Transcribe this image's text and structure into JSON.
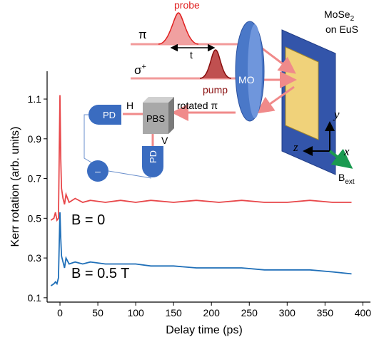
{
  "chart_data": {
    "type": "line",
    "xlabel": "Delay time (ps)",
    "ylabel": "Kerr rotation (arb. units)",
    "x": [
      -12,
      -8,
      -6,
      -4,
      -2,
      0,
      1,
      2,
      4,
      6,
      8,
      12,
      20,
      30,
      40,
      60,
      80,
      100,
      120,
      150,
      180,
      210,
      240,
      270,
      300,
      330,
      360,
      385
    ],
    "series": [
      {
        "color": "#e8474a",
        "values": [
          0.49,
          0.5,
          0.53,
          0.49,
          0.5,
          1.12,
          0.8,
          0.65,
          0.6,
          0.57,
          0.62,
          0.58,
          0.6,
          0.58,
          0.59,
          0.58,
          0.59,
          0.58,
          0.59,
          0.58,
          0.59,
          0.58,
          0.59,
          0.58,
          0.58,
          0.59,
          0.58,
          0.58
        ]
      },
      {
        "color": "#1f6fb8",
        "values": [
          0.16,
          0.17,
          0.18,
          0.17,
          0.2,
          0.53,
          0.4,
          0.31,
          0.28,
          0.25,
          0.3,
          0.27,
          0.28,
          0.27,
          0.28,
          0.27,
          0.27,
          0.27,
          0.26,
          0.26,
          0.25,
          0.25,
          0.25,
          0.24,
          0.24,
          0.24,
          0.23,
          0.22
        ]
      }
    ],
    "annotations": [
      "B = 0",
      "B = 0.5 T"
    ],
    "xlim": [
      -17,
      410
    ],
    "xticks": [
      0,
      50,
      100,
      150,
      200,
      250,
      300,
      350,
      400
    ],
    "ylim": [
      0.078,
      1.24
    ],
    "yticks": [
      0.1,
      0.3,
      0.5,
      0.7,
      0.9,
      1.1
    ]
  },
  "diagram": {
    "probe": "probe",
    "pi": "π",
    "t": "t",
    "sigma": {
      "main": "σ",
      "sup": "+"
    },
    "pump": "pump",
    "mo": "MO",
    "sample": {
      "main": "MoSe",
      "sub": "2",
      "line2": "on EuS"
    },
    "rotated": "rotated π",
    "pbs": "PBS",
    "pd_h": "PD",
    "h": "H",
    "pd_v": "PD",
    "v": "V",
    "minus": "–",
    "y": "y",
    "z": "z",
    "x": "x",
    "bext": {
      "main": "B",
      "sub": "ext"
    }
  }
}
